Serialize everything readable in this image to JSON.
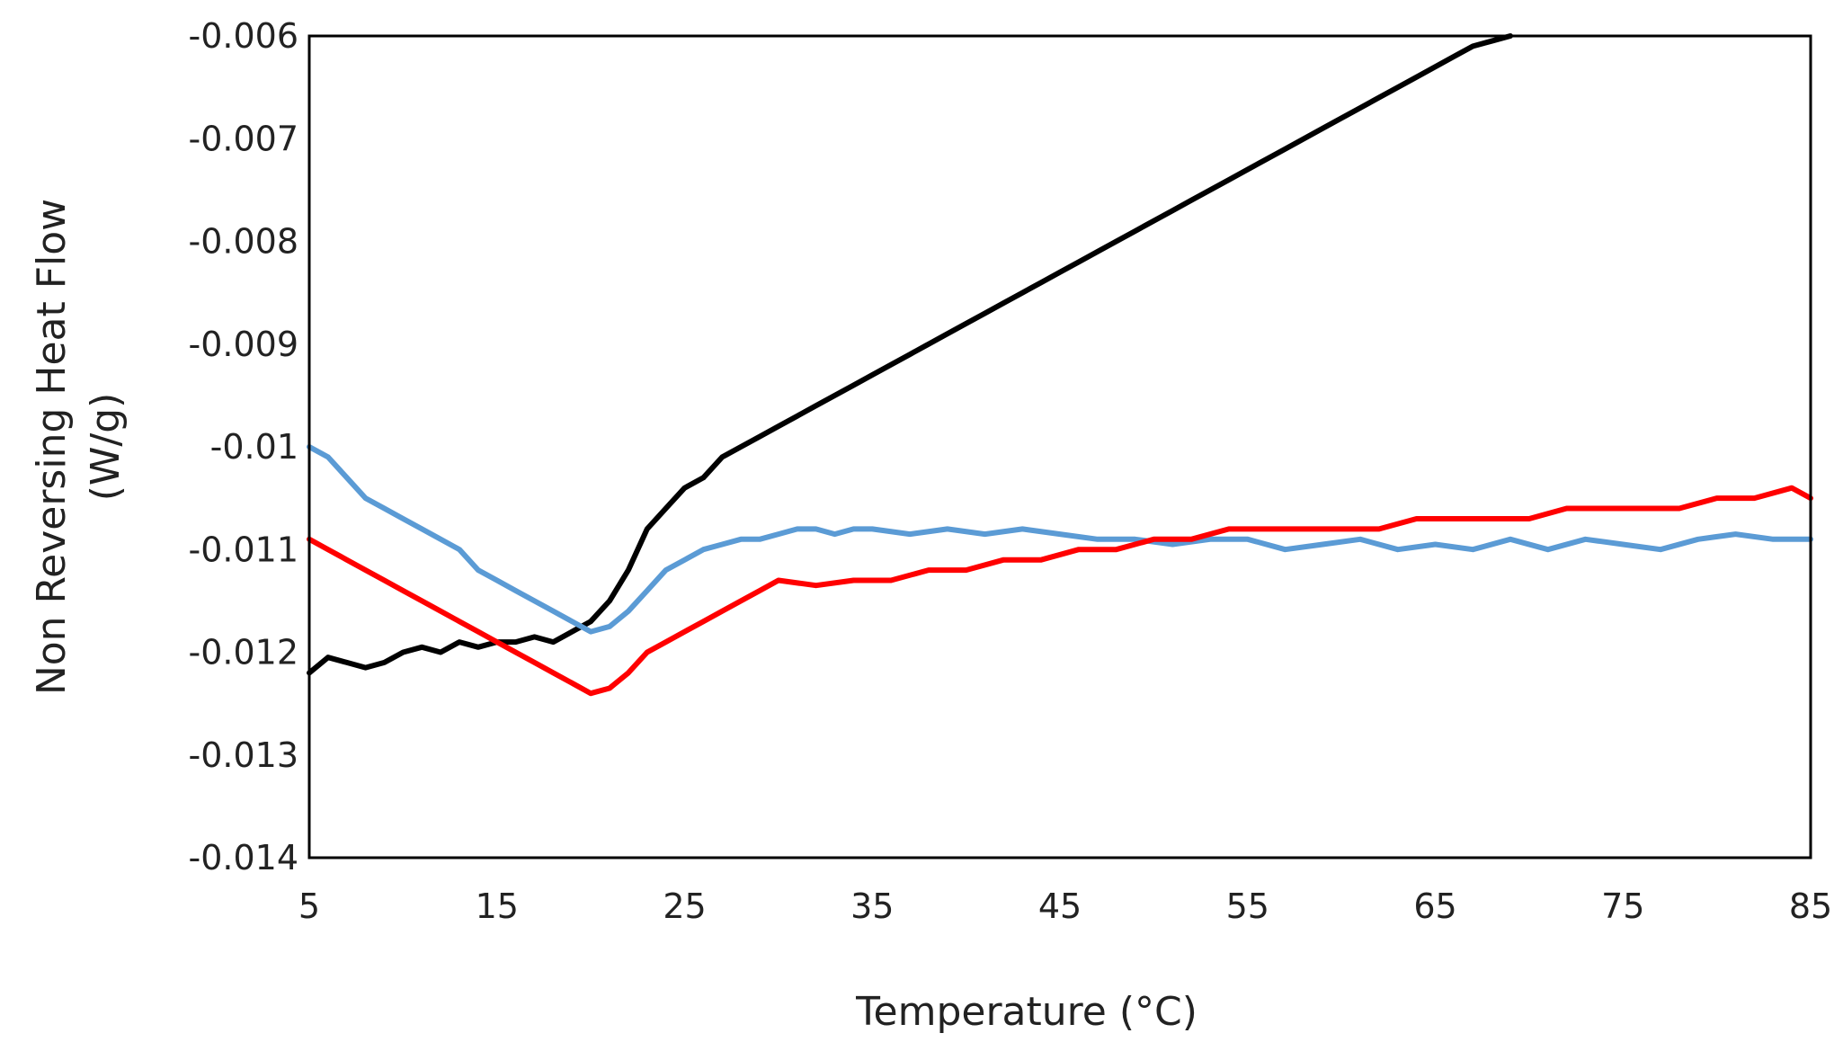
{
  "chart_data": {
    "type": "line",
    "title": "",
    "xlabel": "Temperature (°C)",
    "ylabel_lines": [
      "Non Reversing Heat Flow",
      "(W/g)"
    ],
    "xlim": [
      5,
      85
    ],
    "ylim": [
      -0.014,
      -0.006
    ],
    "x_ticks": [
      5,
      15,
      25,
      35,
      45,
      55,
      65,
      75,
      85
    ],
    "x_tick_labels": [
      "5",
      "15",
      "25",
      "35",
      "45",
      "55",
      "65",
      "75",
      "85"
    ],
    "y_ticks": [
      -0.006,
      -0.007,
      -0.008,
      -0.009,
      -0.01,
      -0.011,
      -0.012,
      -0.013,
      -0.014
    ],
    "y_tick_labels": [
      "-0.006",
      "-0.007",
      "-0.008",
      "-0.009",
      "-0.01",
      "-0.011",
      "-0.012",
      "-0.013",
      "-0.014"
    ],
    "grid": false,
    "legend": "none",
    "series": [
      {
        "name": "black",
        "color": "#000000",
        "points": [
          [
            5,
            -0.0122
          ],
          [
            6,
            -0.01205
          ],
          [
            7,
            -0.0121
          ],
          [
            8,
            -0.01215
          ],
          [
            9,
            -0.0121
          ],
          [
            10,
            -0.012
          ],
          [
            11,
            -0.01195
          ],
          [
            12,
            -0.012
          ],
          [
            13,
            -0.0119
          ],
          [
            14,
            -0.01195
          ],
          [
            15,
            -0.0119
          ],
          [
            16,
            -0.0119
          ],
          [
            17,
            -0.01185
          ],
          [
            18,
            -0.0119
          ],
          [
            19,
            -0.0118
          ],
          [
            20,
            -0.0117
          ],
          [
            21,
            -0.0115
          ],
          [
            22,
            -0.0112
          ],
          [
            23,
            -0.0108
          ],
          [
            24,
            -0.0106
          ],
          [
            25,
            -0.0104
          ],
          [
            26,
            -0.0103
          ],
          [
            27,
            -0.0101
          ],
          [
            28,
            -0.01
          ],
          [
            29,
            -0.0099
          ],
          [
            30,
            -0.0098
          ],
          [
            31,
            -0.0097
          ],
          [
            32,
            -0.0096
          ],
          [
            33,
            -0.0095
          ],
          [
            34,
            -0.0094
          ],
          [
            35,
            -0.0093
          ],
          [
            36,
            -0.0092
          ],
          [
            37,
            -0.0091
          ],
          [
            38,
            -0.009
          ],
          [
            39,
            -0.0089
          ],
          [
            40,
            -0.0088
          ],
          [
            41,
            -0.0087
          ],
          [
            42,
            -0.0086
          ],
          [
            43,
            -0.0085
          ],
          [
            44,
            -0.0084
          ],
          [
            45,
            -0.0083
          ],
          [
            46,
            -0.0082
          ],
          [
            47,
            -0.0081
          ],
          [
            48,
            -0.008
          ],
          [
            49,
            -0.0079
          ],
          [
            50,
            -0.0078
          ],
          [
            51,
            -0.0077
          ],
          [
            52,
            -0.0076
          ],
          [
            53,
            -0.0075
          ],
          [
            54,
            -0.0074
          ],
          [
            55,
            -0.0073
          ],
          [
            56,
            -0.0072
          ],
          [
            57,
            -0.0071
          ],
          [
            58,
            -0.007
          ],
          [
            59,
            -0.0069
          ],
          [
            60,
            -0.0068
          ],
          [
            61,
            -0.0067
          ],
          [
            62,
            -0.0066
          ],
          [
            63,
            -0.0065
          ],
          [
            64,
            -0.0064
          ],
          [
            65,
            -0.0063
          ],
          [
            66,
            -0.0062
          ],
          [
            67,
            -0.0061
          ],
          [
            68,
            -0.00605
          ],
          [
            69,
            -0.006
          ]
        ]
      },
      {
        "name": "blue",
        "color": "#5B9BD5",
        "points": [
          [
            5,
            -0.01
          ],
          [
            6,
            -0.0101
          ],
          [
            7,
            -0.0103
          ],
          [
            8,
            -0.0105
          ],
          [
            9,
            -0.0106
          ],
          [
            10,
            -0.0107
          ],
          [
            11,
            -0.0108
          ],
          [
            12,
            -0.0109
          ],
          [
            13,
            -0.011
          ],
          [
            14,
            -0.0112
          ],
          [
            15,
            -0.0113
          ],
          [
            16,
            -0.0114
          ],
          [
            17,
            -0.0115
          ],
          [
            18,
            -0.0116
          ],
          [
            19,
            -0.0117
          ],
          [
            20,
            -0.0118
          ],
          [
            21,
            -0.01175
          ],
          [
            22,
            -0.0116
          ],
          [
            23,
            -0.0114
          ],
          [
            24,
            -0.0112
          ],
          [
            25,
            -0.0111
          ],
          [
            26,
            -0.011
          ],
          [
            27,
            -0.01095
          ],
          [
            28,
            -0.0109
          ],
          [
            29,
            -0.0109
          ],
          [
            30,
            -0.01085
          ],
          [
            31,
            -0.0108
          ],
          [
            32,
            -0.0108
          ],
          [
            33,
            -0.01085
          ],
          [
            34,
            -0.0108
          ],
          [
            35,
            -0.0108
          ],
          [
            37,
            -0.01085
          ],
          [
            39,
            -0.0108
          ],
          [
            41,
            -0.01085
          ],
          [
            43,
            -0.0108
          ],
          [
            45,
            -0.01085
          ],
          [
            47,
            -0.0109
          ],
          [
            49,
            -0.0109
          ],
          [
            51,
            -0.01095
          ],
          [
            53,
            -0.0109
          ],
          [
            55,
            -0.0109
          ],
          [
            57,
            -0.011
          ],
          [
            59,
            -0.01095
          ],
          [
            61,
            -0.0109
          ],
          [
            63,
            -0.011
          ],
          [
            65,
            -0.01095
          ],
          [
            67,
            -0.011
          ],
          [
            69,
            -0.0109
          ],
          [
            71,
            -0.011
          ],
          [
            73,
            -0.0109
          ],
          [
            75,
            -0.01095
          ],
          [
            77,
            -0.011
          ],
          [
            79,
            -0.0109
          ],
          [
            81,
            -0.01085
          ],
          [
            83,
            -0.0109
          ],
          [
            85,
            -0.0109
          ]
        ]
      },
      {
        "name": "red",
        "color": "#FF0000",
        "points": [
          [
            5,
            -0.0109
          ],
          [
            6,
            -0.011
          ],
          [
            7,
            -0.0111
          ],
          [
            8,
            -0.0112
          ],
          [
            9,
            -0.0113
          ],
          [
            10,
            -0.0114
          ],
          [
            11,
            -0.0115
          ],
          [
            12,
            -0.0116
          ],
          [
            13,
            -0.0117
          ],
          [
            14,
            -0.0118
          ],
          [
            15,
            -0.0119
          ],
          [
            16,
            -0.012
          ],
          [
            17,
            -0.0121
          ],
          [
            18,
            -0.0122
          ],
          [
            19,
            -0.0123
          ],
          [
            20,
            -0.0124
          ],
          [
            21,
            -0.01235
          ],
          [
            22,
            -0.0122
          ],
          [
            23,
            -0.012
          ],
          [
            24,
            -0.0119
          ],
          [
            25,
            -0.0118
          ],
          [
            26,
            -0.0117
          ],
          [
            27,
            -0.0116
          ],
          [
            28,
            -0.0115
          ],
          [
            29,
            -0.0114
          ],
          [
            30,
            -0.0113
          ],
          [
            32,
            -0.01135
          ],
          [
            34,
            -0.0113
          ],
          [
            36,
            -0.0113
          ],
          [
            38,
            -0.0112
          ],
          [
            40,
            -0.0112
          ],
          [
            42,
            -0.0111
          ],
          [
            44,
            -0.0111
          ],
          [
            46,
            -0.011
          ],
          [
            48,
            -0.011
          ],
          [
            50,
            -0.0109
          ],
          [
            52,
            -0.0109
          ],
          [
            54,
            -0.0108
          ],
          [
            56,
            -0.0108
          ],
          [
            58,
            -0.0108
          ],
          [
            60,
            -0.0108
          ],
          [
            62,
            -0.0108
          ],
          [
            64,
            -0.0107
          ],
          [
            66,
            -0.0107
          ],
          [
            68,
            -0.0107
          ],
          [
            70,
            -0.0107
          ],
          [
            72,
            -0.0106
          ],
          [
            74,
            -0.0106
          ],
          [
            76,
            -0.0106
          ],
          [
            78,
            -0.0106
          ],
          [
            80,
            -0.0105
          ],
          [
            82,
            -0.0105
          ],
          [
            84,
            -0.0104
          ],
          [
            85,
            -0.0105
          ]
        ]
      }
    ]
  }
}
